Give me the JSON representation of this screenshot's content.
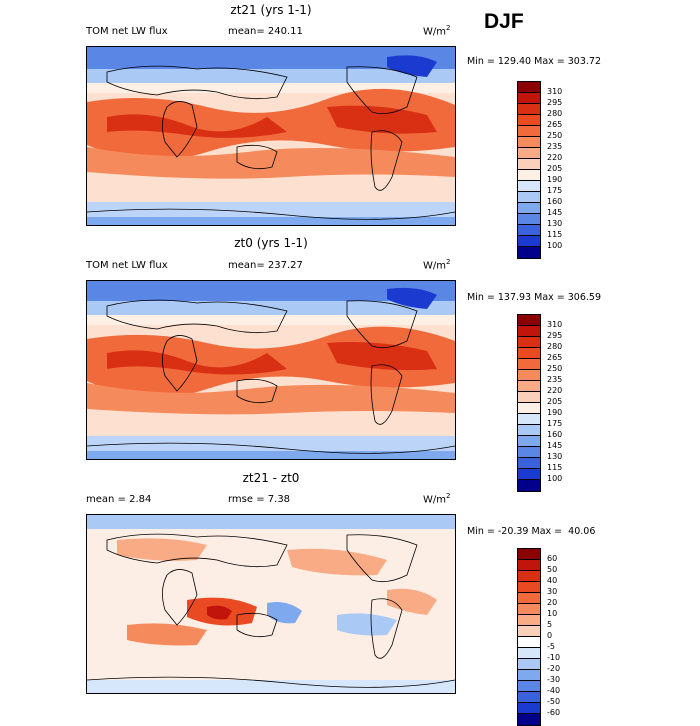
{
  "season": "DJF",
  "panels": [
    {
      "title": "zt21 (yrs 1-1)",
      "label_left": "TOM net LW flux",
      "label_mid": "mean= 240.11",
      "units": "W/m",
      "units_exp": "2",
      "minmax": "Min = 129.40 Max = 303.72",
      "colorbar_levels": [
        "310",
        "295",
        "280",
        "265",
        "250",
        "235",
        "220",
        "205",
        "190",
        "175",
        "160",
        "145",
        "130",
        "115",
        "100"
      ],
      "colorbar_colors": [
        "#8b0000",
        "#c1150b",
        "#d92f13",
        "#e94a22",
        "#f06a3c",
        "#f58b5c",
        "#f8ab84",
        "#fbd0b8",
        "#fff0e6",
        "#d6e6fb",
        "#aac9f5",
        "#7ea9ee",
        "#5a86e6",
        "#3a62dc",
        "#1a3ad0",
        "#00008b"
      ]
    },
    {
      "title": "zt0 (yrs 1-1)",
      "label_left": "TOM net LW flux",
      "label_mid": "mean= 237.27",
      "units": "W/m",
      "units_exp": "2",
      "minmax": "Min = 137.93 Max = 306.59",
      "colorbar_levels": [
        "310",
        "295",
        "280",
        "265",
        "250",
        "235",
        "220",
        "205",
        "190",
        "175",
        "160",
        "145",
        "130",
        "115",
        "100"
      ],
      "colorbar_colors": [
        "#8b0000",
        "#c1150b",
        "#d92f13",
        "#e94a22",
        "#f06a3c",
        "#f58b5c",
        "#f8ab84",
        "#fbd0b8",
        "#fff0e6",
        "#d6e6fb",
        "#aac9f5",
        "#7ea9ee",
        "#5a86e6",
        "#3a62dc",
        "#1a3ad0",
        "#00008b"
      ]
    },
    {
      "title": "zt21 - zt0",
      "label_left": "mean =    2.84",
      "label_mid": "rmse =    7.38",
      "units": "W/m",
      "units_exp": "2",
      "minmax": "Min = -20.39 Max =  40.06",
      "colorbar_levels": [
        "60",
        "50",
        "40",
        "30",
        "20",
        "10",
        "5",
        "0",
        "-5",
        "-10",
        "-20",
        "-30",
        "-40",
        "-50",
        "-60"
      ],
      "colorbar_colors": [
        "#8b0000",
        "#c1150b",
        "#d92f13",
        "#e94a22",
        "#f06a3c",
        "#f58b5c",
        "#f8ab84",
        "#fbd0b8",
        "#ffffff",
        "#d6e6fb",
        "#aac9f5",
        "#7ea9ee",
        "#5a86e6",
        "#3a62dc",
        "#1a3ad0",
        "#00008b"
      ]
    }
  ]
}
